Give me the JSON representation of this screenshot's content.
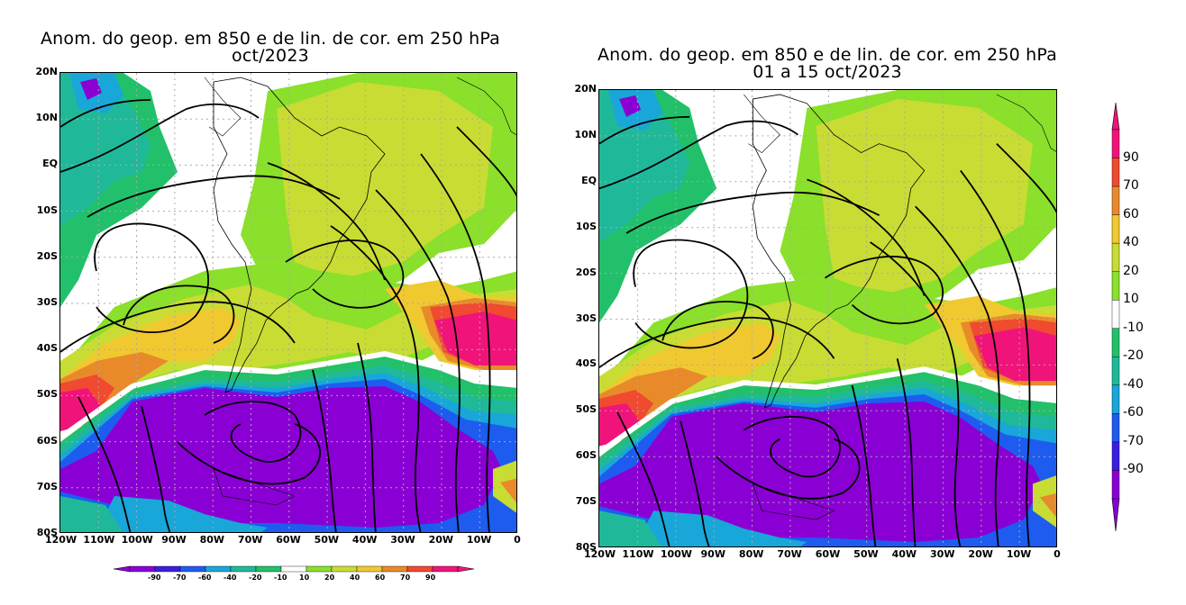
{
  "panels": [
    {
      "id": "left",
      "title_line1": "Anom. do geop. em 850 e de lin. de cor. em 250 hPa",
      "title_line2": "oct/2023"
    },
    {
      "id": "right",
      "title_line1": "Anom. do geop. em 850 e de lin. de cor. em 250 hPa",
      "title_line2": "01 a 15 oct/2023"
    }
  ],
  "lat_labels": [
    "20N",
    "10N",
    "EQ",
    "10S",
    "20S",
    "30S",
    "40S",
    "50S",
    "60S",
    "70S",
    "80S"
  ],
  "lon_labels": [
    "120W",
    "110W",
    "100W",
    "90W",
    "80W",
    "70W",
    "60W",
    "50W",
    "40W",
    "30W",
    "20W",
    "10W",
    "0"
  ],
  "legend_vertical": [
    "90",
    "70",
    "60",
    "40",
    "20",
    "10",
    "-10",
    "-20",
    "-40",
    "-60",
    "-70",
    "-90"
  ],
  "legend_horizontal": [
    "-90",
    "-70",
    "-60",
    "-40",
    "-20",
    "-10",
    "10",
    "20",
    "40",
    "60",
    "70",
    "90"
  ],
  "colors": {
    "n90": "#8a00d4",
    "n70": "#3a1fe0",
    "n60": "#1e5cf0",
    "n40": "#19a6d8",
    "n20": "#1fb99a",
    "n10": "#22c06a",
    "zero": "#ffffff",
    "p10": "#8ae02a",
    "p20": "#c8dc34",
    "p40": "#f0c830",
    "p60": "#e88a2a",
    "p70": "#f04a30",
    "p90": "#f0147a"
  }
}
